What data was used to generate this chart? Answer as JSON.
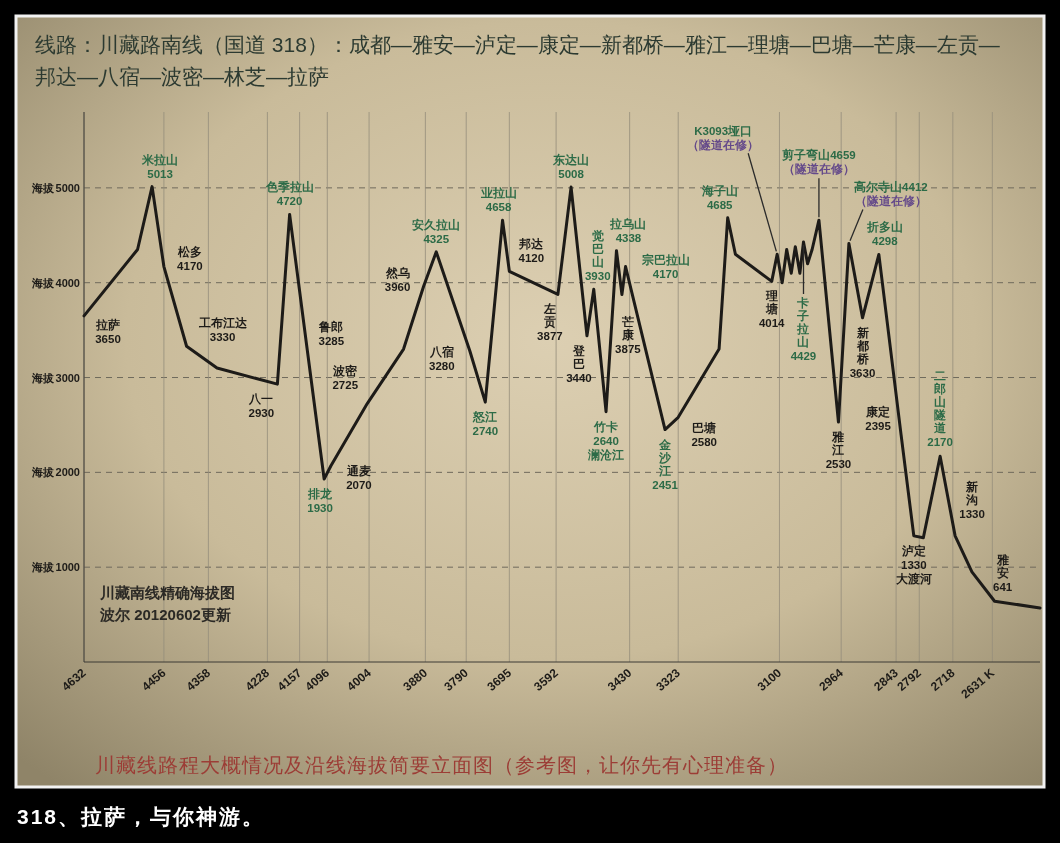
{
  "chart_data": {
    "type": "line",
    "title": "线路：川藏路南线（国道 318）：成都—雅安—泸定—康定—新都桥—雅江—理塘—巴塘—芒康—左贡—邦达—八宿—波密—林芝—拉萨",
    "ylabel": "海拔",
    "x": [
      4632,
      4514,
      4482,
      4456,
      4406,
      4339,
      4206,
      4179,
      4140,
      4103,
      4088,
      4008,
      3928,
      3884,
      3856,
      3782,
      3748,
      3710,
      3695,
      3588,
      3559,
      3524,
      3509,
      3482,
      3459,
      3447,
      3439,
      3352,
      3323,
      3233,
      3214,
      3197,
      3117,
      3105,
      3094,
      3084,
      3074,
      3065,
      3055,
      3047,
      3038,
      3028,
      3013,
      2970,
      2947,
      2917,
      2881,
      2832,
      2804,
      2783,
      2746,
      2713,
      2676,
      2626,
      2526
    ],
    "values": [
      3650,
      4350,
      5013,
      4170,
      3330,
      3100,
      2930,
      4720,
      3285,
      1930,
      2070,
      2725,
      3300,
      3960,
      4325,
      3280,
      2740,
      4658,
      4120,
      3877,
      5008,
      3440,
      3930,
      2640,
      4338,
      3875,
      4170,
      2451,
      2580,
      3300,
      4685,
      4300,
      4014,
      4300,
      4000,
      4350,
      4100,
      4380,
      4100,
      4429,
      4200,
      4350,
      4659,
      2530,
      4412,
      3630,
      4298,
      2395,
      1330,
      1310,
      2170,
      1330,
      950,
      641,
      570
    ],
    "color": "#1d1b18",
    "xlim": [
      4632,
      2526
    ],
    "xticks": [
      4632,
      4456,
      4358,
      4228,
      4157,
      4096,
      4004,
      3880,
      3790,
      3695,
      3592,
      3430,
      3323,
      3100,
      2964,
      2843,
      2792,
      2718,
      {
        "value": 2631,
        "label": "2631 K"
      }
    ],
    "ylim": [
      0,
      5800
    ],
    "yticks": [
      1000,
      2000,
      3000,
      4000,
      5000
    ],
    "grid": true,
    "annotations": [
      {
        "text": "拉萨\n3650",
        "x": 4632,
        "y": 3650
      },
      {
        "text": "米拉山\n5013",
        "x": 4482,
        "y": 5013
      },
      {
        "text": "松多\n4170",
        "x": 4456,
        "y": 4170
      },
      {
        "text": "工布江达\n3330",
        "x": 4406,
        "y": 3330
      },
      {
        "text": "八一\n2930",
        "x": 4206,
        "y": 2930
      },
      {
        "text": "色季拉山\n4720",
        "x": 4179,
        "y": 4720
      },
      {
        "text": "鲁郎\n3285",
        "x": 4140,
        "y": 3285
      },
      {
        "text": "排龙\n1930",
        "x": 4103,
        "y": 1930
      },
      {
        "text": "通麦\n2070",
        "x": 4088,
        "y": 2070
      },
      {
        "text": "波密\n2725",
        "x": 4008,
        "y": 2725
      },
      {
        "text": "然乌\n3960",
        "x": 3884,
        "y": 3960
      },
      {
        "text": "安久拉山\n4325",
        "x": 3856,
        "y": 4325
      },
      {
        "text": "八宿\n3280",
        "x": 3782,
        "y": 3280
      },
      {
        "text": "怒江\n2740",
        "x": 3748,
        "y": 2740
      },
      {
        "text": "业拉山\n4658",
        "x": 3710,
        "y": 4658
      },
      {
        "text": "邦达\n4120",
        "x": 3695,
        "y": 4120
      },
      {
        "text": "左贡\n3877",
        "x": 3588,
        "y": 3877
      },
      {
        "text": "东达山\n5008",
        "x": 3559,
        "y": 5008
      },
      {
        "text": "登巴\n3440",
        "x": 3524,
        "y": 3440
      },
      {
        "text": "觉巴山\n3930",
        "x": 3509,
        "y": 3930
      },
      {
        "text": "竹卡\n2640\n澜沧江",
        "x": 3482,
        "y": 2640
      },
      {
        "text": "拉乌山\n4338",
        "x": 3459,
        "y": 4338
      },
      {
        "text": "芒康\n3875",
        "x": 3447,
        "y": 3875
      },
      {
        "text": "宗巴拉山\n4170",
        "x": 3439,
        "y": 4170
      },
      {
        "text": "金沙江\n2451",
        "x": 3352,
        "y": 2451
      },
      {
        "text": "巴塘\n2580",
        "x": 3323,
        "y": 2580
      },
      {
        "text": "海子山\n4685",
        "x": 3214,
        "y": 4685
      },
      {
        "text": "理塘\n4014",
        "x": 3117,
        "y": 4014
      },
      {
        "text": "K3093垭口（隧道在修）",
        "x": 3105,
        "y": 4300
      },
      {
        "text": "卡子拉山\n4429",
        "x": 3047,
        "y": 4429
      },
      {
        "text": "剪子弯山4659（隧道在修）",
        "x": 3013,
        "y": 4659
      },
      {
        "text": "雅江\n2530",
        "x": 2970,
        "y": 2530
      },
      {
        "text": "高尔寺山4412（隧道在修）",
        "x": 2947,
        "y": 4412
      },
      {
        "text": "新都桥\n3630",
        "x": 2917,
        "y": 3630
      },
      {
        "text": "折多山\n4298",
        "x": 2881,
        "y": 4298
      },
      {
        "text": "康定\n2395",
        "x": 2832,
        "y": 2395
      },
      {
        "text": "泸定\n1330\n大渡河",
        "x": 2804,
        "y": 1330
      },
      {
        "text": "二郎山隧道\n2170",
        "x": 2746,
        "y": 2170
      },
      {
        "text": "新沟\n1330",
        "x": 2713,
        "y": 1330
      },
      {
        "text": "雅安\n641",
        "x": 2626,
        "y": 641
      },
      "川藏南线精确海拔图",
      "波尔 20120602更新",
      "川藏线路程大概情况及沿线海拔简要立面图（参考图，让你先有心理准备）",
      "318、拉萨，与你神游。"
    ]
  }
}
